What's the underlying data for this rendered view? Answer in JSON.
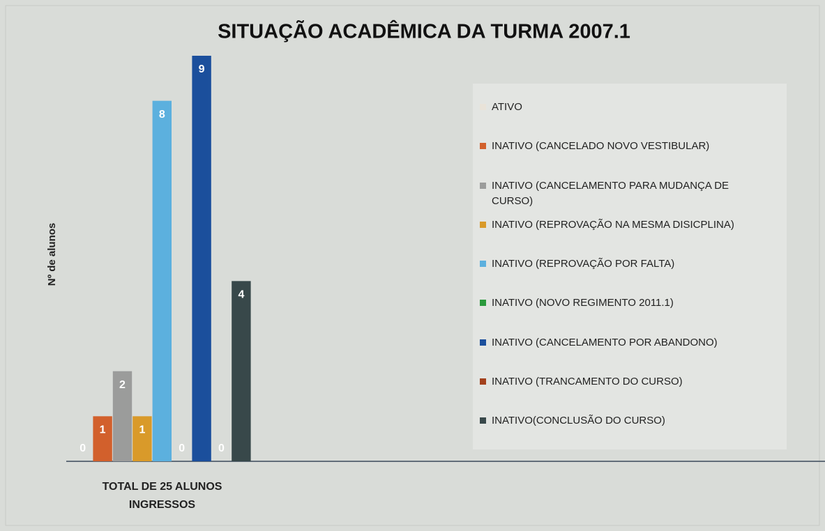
{
  "chart_data": {
    "type": "bar",
    "title": "SITUAÇÃO ACADÊMICA DA TURMA 2007.1",
    "y_label": "Nº de alunos",
    "categories": [
      "TOTAL DE 25 ALUNOS INGRESSOS"
    ],
    "ylim": [
      0,
      9
    ],
    "legend": "right",
    "series": [
      {
        "name": "ATIVO",
        "color": "#e9e3d9",
        "values": [
          0
        ]
      },
      {
        "name": "INATIVO (CANCELADO NOVO VESTIBULAR)",
        "color": "#d2602c",
        "values": [
          1
        ]
      },
      {
        "name": "INATIVO (CANCELAMENTO PARA MUDANÇA DE CURSO)",
        "color": "#9b9c9b",
        "values": [
          2
        ]
      },
      {
        "name": "INATIVO (REPROVAÇÃO NA MESMA DISICPLINA)",
        "color": "#d99a2a",
        "values": [
          1
        ]
      },
      {
        "name": "INATIVO (REPROVAÇÃO POR FALTA)",
        "color": "#5cb0de",
        "values": [
          8
        ]
      },
      {
        "name": "INATIVO (NOVO REGIMENTO 2011.1)",
        "color": "#2a9a3c",
        "values": [
          0
        ]
      },
      {
        "name": "INATIVO (CANCELAMENTO POR ABANDONO)",
        "color": "#1b4f9c",
        "values": [
          9
        ]
      },
      {
        "name": "INATIVO (TRANCAMENTO DO CURSO)",
        "color": "#a3411d",
        "values": [
          0
        ]
      },
      {
        "name": "INATIVO(CONCLUSÃO DO CURSO)",
        "color": "#38484a",
        "values": [
          4
        ]
      }
    ]
  }
}
